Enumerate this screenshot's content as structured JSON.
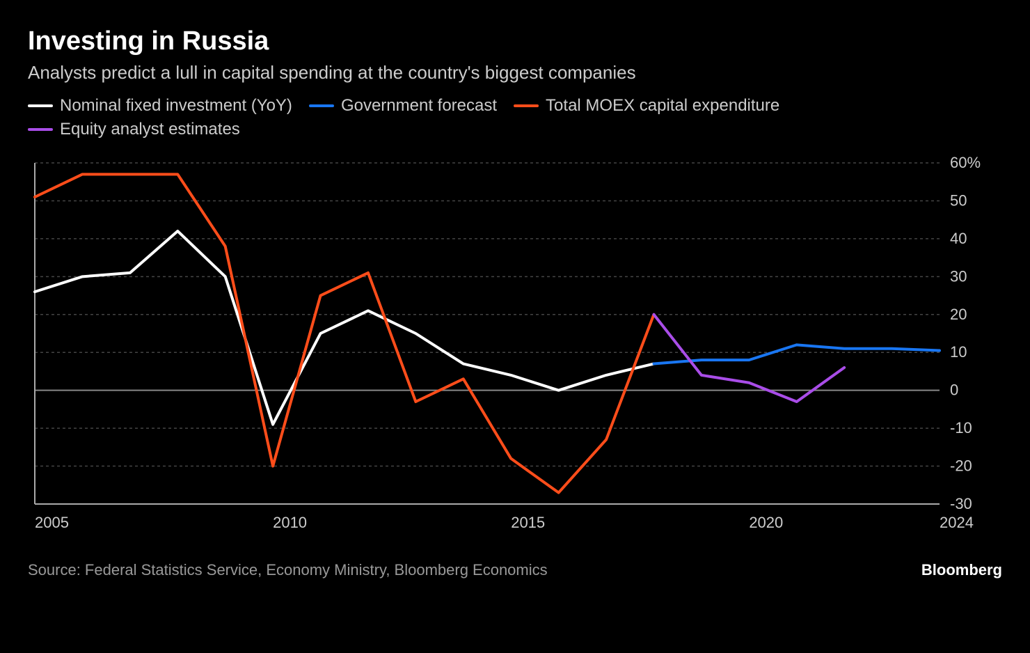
{
  "title": "Investing in Russia",
  "subtitle": "Analysts predict a lull in capital spending at the country's biggest companies",
  "source": "Source: Federal Statistics Service, Economy Ministry, Bloomberg Economics",
  "brand": "Bloomberg",
  "chart": {
    "type": "line",
    "background_color": "#000000",
    "grid_color": "#444444",
    "zero_line_color": "#888888",
    "axis_color": "#aaaaaa",
    "text_color": "#cccccc",
    "x_range": [
      2005,
      2024
    ],
    "y_range": [
      -30,
      60
    ],
    "y_ticks": [
      -30,
      -20,
      -10,
      0,
      10,
      20,
      30,
      40,
      50,
      60
    ],
    "y_tick_suffix_top": "%",
    "x_ticks": [
      2005,
      2010,
      2015,
      2020,
      2024
    ],
    "line_width": 4,
    "series": [
      {
        "name": "Nominal fixed investment (YoY)",
        "color": "#ffffff",
        "points": [
          [
            2005,
            26
          ],
          [
            2006,
            30
          ],
          [
            2007,
            31
          ],
          [
            2008,
            42
          ],
          [
            2009,
            30
          ],
          [
            2010,
            -9
          ],
          [
            2011,
            15
          ],
          [
            2012,
            21
          ],
          [
            2013,
            15
          ],
          [
            2014,
            7
          ],
          [
            2015,
            4
          ],
          [
            2016,
            0
          ],
          [
            2017,
            4
          ],
          [
            2018,
            7
          ]
        ]
      },
      {
        "name": "Government forecast",
        "color": "#1976f2",
        "points": [
          [
            2018,
            7
          ],
          [
            2019,
            8
          ],
          [
            2020,
            8
          ],
          [
            2021,
            12
          ],
          [
            2022,
            11
          ],
          [
            2023,
            11
          ],
          [
            2024,
            10.5
          ]
        ]
      },
      {
        "name": "Total MOEX capital expenditure",
        "color": "#ff4d1a",
        "points": [
          [
            2005,
            51
          ],
          [
            2006,
            57
          ],
          [
            2007,
            57
          ],
          [
            2008,
            57
          ],
          [
            2009,
            38
          ],
          [
            2010,
            -20
          ],
          [
            2011,
            25
          ],
          [
            2012,
            31
          ],
          [
            2013,
            -3
          ],
          [
            2014,
            3
          ],
          [
            2015,
            -18
          ],
          [
            2016,
            -27
          ],
          [
            2017,
            -13
          ],
          [
            2018,
            20
          ]
        ]
      },
      {
        "name": "Equity analyst estimates",
        "color": "#a94de8",
        "points": [
          [
            2018,
            20
          ],
          [
            2019,
            4
          ],
          [
            2020,
            2
          ],
          [
            2021,
            -3
          ],
          [
            2022,
            6
          ]
        ]
      }
    ]
  }
}
